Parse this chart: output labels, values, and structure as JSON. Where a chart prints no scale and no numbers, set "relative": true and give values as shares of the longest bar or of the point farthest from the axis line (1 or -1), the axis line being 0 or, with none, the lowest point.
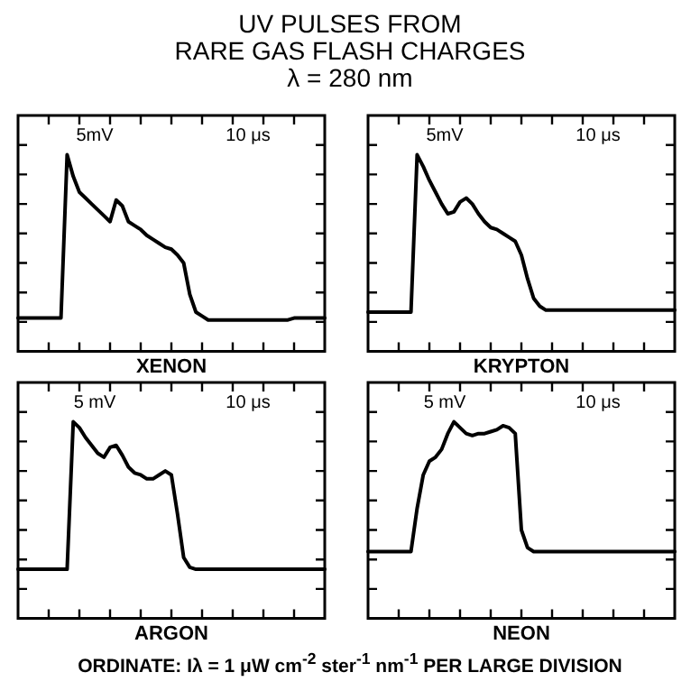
{
  "chart_data": [
    {
      "type": "other",
      "title": "UV  PULSES  FROM\nRARE  GAS  FLASH  CHARGES",
      "subtitle": "λ = 280 nm"
    },
    {
      "type": "line",
      "relative": true,
      "xlabel": "XENON",
      "annotations": [
        "5mV",
        "10 μs"
      ],
      "grid": false,
      "legend": false,
      "tick_labels": false,
      "marker": "none",
      "line_style": "solid",
      "categories": [
        null,
        null,
        null,
        null,
        null,
        null,
        null,
        null,
        null,
        null,
        null,
        null,
        null,
        null,
        null,
        null,
        null,
        null,
        null,
        null,
        null,
        null,
        null,
        null,
        null,
        null,
        null,
        null,
        null,
        null,
        null,
        null,
        null,
        null,
        null,
        null,
        null,
        null,
        null,
        null,
        null,
        null,
        null,
        null,
        null,
        null,
        null,
        null,
        null,
        null,
        null
      ],
      "series": [
        {
          "color": "#000000",
          "values": [
            0.17,
            0.17,
            0.17,
            0.17,
            0.17,
            0.17,
            0.17,
            0.17,
            1.0,
            0.89,
            0.81,
            0.78,
            0.75,
            0.72,
            0.69,
            0.66,
            0.77,
            0.74,
            0.66,
            0.64,
            0.62,
            0.59,
            0.57,
            0.55,
            0.53,
            0.52,
            0.49,
            0.45,
            0.29,
            0.2,
            0.18,
            0.16,
            0.16,
            0.16,
            0.16,
            0.16,
            0.16,
            0.16,
            0.16,
            0.16,
            0.16,
            0.16,
            0.16,
            0.16,
            0.16,
            0.17,
            0.17,
            0.17,
            0.17,
            0.17,
            0.17
          ]
        }
      ]
    },
    {
      "type": "line",
      "relative": true,
      "xlabel": "KRYPTON",
      "annotations": [
        "5mV",
        "10 μs"
      ],
      "grid": false,
      "legend": false,
      "tick_labels": false,
      "marker": "none",
      "line_style": "solid",
      "categories": [
        null,
        null,
        null,
        null,
        null,
        null,
        null,
        null,
        null,
        null,
        null,
        null,
        null,
        null,
        null,
        null,
        null,
        null,
        null,
        null,
        null,
        null,
        null,
        null,
        null,
        null,
        null,
        null,
        null,
        null,
        null,
        null,
        null,
        null,
        null,
        null,
        null,
        null,
        null,
        null,
        null,
        null,
        null,
        null,
        null,
        null,
        null,
        null,
        null,
        null,
        null
      ],
      "series": [
        {
          "color": "#000000",
          "values": [
            0.2,
            0.2,
            0.2,
            0.2,
            0.2,
            0.2,
            0.2,
            0.2,
            1.0,
            0.94,
            0.87,
            0.81,
            0.75,
            0.7,
            0.71,
            0.76,
            0.78,
            0.75,
            0.7,
            0.66,
            0.63,
            0.62,
            0.6,
            0.58,
            0.56,
            0.49,
            0.37,
            0.27,
            0.23,
            0.21,
            0.21,
            0.21,
            0.21,
            0.21,
            0.21,
            0.21,
            0.21,
            0.21,
            0.21,
            0.21,
            0.21,
            0.21,
            0.21,
            0.21,
            0.21,
            0.21,
            0.21,
            0.21,
            0.21,
            0.21,
            0.21
          ]
        }
      ]
    },
    {
      "type": "line",
      "relative": true,
      "xlabel": "ARGON",
      "annotations": [
        "5 mV",
        "10 μs"
      ],
      "grid": false,
      "legend": false,
      "tick_labels": false,
      "marker": "none",
      "line_style": "solid",
      "categories": [
        null,
        null,
        null,
        null,
        null,
        null,
        null,
        null,
        null,
        null,
        null,
        null,
        null,
        null,
        null,
        null,
        null,
        null,
        null,
        null,
        null,
        null,
        null,
        null,
        null,
        null,
        null,
        null,
        null,
        null,
        null,
        null,
        null,
        null,
        null,
        null,
        null,
        null,
        null,
        null,
        null,
        null,
        null,
        null,
        null,
        null,
        null,
        null,
        null,
        null,
        null
      ],
      "series": [
        {
          "color": "#000000",
          "values": [
            0.25,
            0.25,
            0.25,
            0.25,
            0.25,
            0.25,
            0.25,
            0.25,
            0.25,
            1.0,
            0.97,
            0.92,
            0.88,
            0.84,
            0.82,
            0.87,
            0.88,
            0.83,
            0.77,
            0.74,
            0.73,
            0.71,
            0.71,
            0.73,
            0.75,
            0.73,
            0.53,
            0.31,
            0.26,
            0.25,
            0.25,
            0.25,
            0.25,
            0.25,
            0.25,
            0.25,
            0.25,
            0.25,
            0.25,
            0.25,
            0.25,
            0.25,
            0.25,
            0.25,
            0.25,
            0.25,
            0.25,
            0.25,
            0.25,
            0.25,
            0.25
          ]
        }
      ]
    },
    {
      "type": "line",
      "relative": true,
      "xlabel": "NEON",
      "annotations": [
        "5 mV",
        "10 μs"
      ],
      "grid": false,
      "legend": false,
      "tick_labels": false,
      "marker": "none",
      "line_style": "solid",
      "categories": [
        null,
        null,
        null,
        null,
        null,
        null,
        null,
        null,
        null,
        null,
        null,
        null,
        null,
        null,
        null,
        null,
        null,
        null,
        null,
        null,
        null,
        null,
        null,
        null,
        null,
        null,
        null,
        null,
        null,
        null,
        null,
        null,
        null,
        null,
        null,
        null,
        null,
        null,
        null,
        null,
        null,
        null,
        null,
        null,
        null,
        null,
        null,
        null,
        null,
        null,
        null
      ],
      "series": [
        {
          "color": "#000000",
          "values": [
            0.34,
            0.34,
            0.34,
            0.34,
            0.34,
            0.34,
            0.34,
            0.34,
            0.56,
            0.73,
            0.8,
            0.82,
            0.86,
            0.94,
            1.0,
            0.97,
            0.94,
            0.93,
            0.94,
            0.94,
            0.95,
            0.96,
            0.98,
            0.97,
            0.94,
            0.45,
            0.36,
            0.34,
            0.34,
            0.34,
            0.34,
            0.34,
            0.34,
            0.34,
            0.34,
            0.34,
            0.34,
            0.34,
            0.34,
            0.34,
            0.34,
            0.34,
            0.34,
            0.34,
            0.34,
            0.34,
            0.34,
            0.34,
            0.34,
            0.34,
            0.34
          ]
        }
      ]
    },
    {
      "type": "other",
      "annotations": [
        "ORDINATE: Iλ = 1 μW cm$^{-2}$ ster$^{-1}$ nm$^{-1}$ PER LARGE DIVISION"
      ]
    }
  ]
}
